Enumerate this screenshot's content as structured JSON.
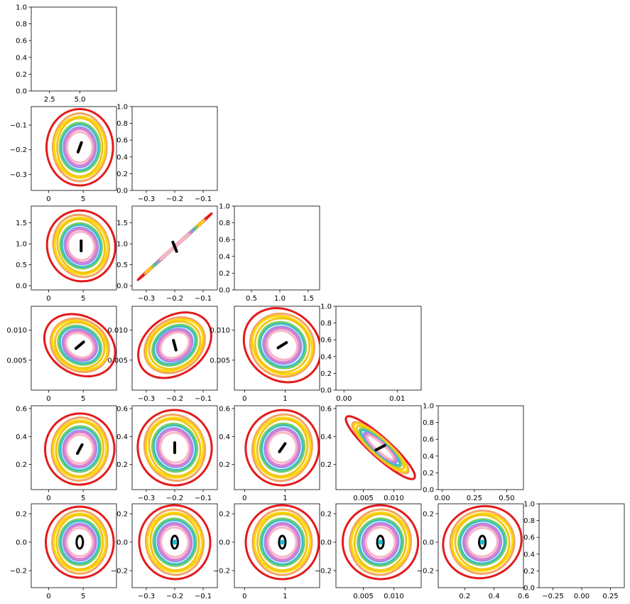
{
  "chart_data": {
    "type": "corner-plot",
    "description_free": true,
    "ellipse_colors": [
      "#e41a1c",
      "#f4a460",
      "#ffd700",
      "#f0c419",
      "#7dd05a",
      "#3cc0c0",
      "#9a8fe8",
      "#e07fd0",
      "#f7b6c8"
    ],
    "ellipse_scales": [
      1.0,
      0.86,
      0.8,
      0.74,
      0.64,
      0.58,
      0.52,
      0.46,
      0.4
    ],
    "panels": [
      {
        "id": "p0-0",
        "row": 0,
        "col": 0,
        "xlim": [
          1.0,
          8.0
        ],
        "ylim": [
          0.0,
          1.0
        ],
        "xticks": [
          {
            "v": 2.5,
            "l": "2.5"
          },
          {
            "v": 5.0,
            "l": "5.0"
          }
        ],
        "yticks": [
          {
            "v": 0.0,
            "l": "0.0"
          },
          {
            "v": 0.2,
            "l": "0.2"
          },
          {
            "v": 0.4,
            "l": "0.4"
          },
          {
            "v": 0.6,
            "l": "0.6"
          },
          {
            "v": 0.8,
            "l": "0.8"
          },
          {
            "v": 1.0,
            "l": "1.0"
          }
        ],
        "empty": true
      },
      {
        "id": "p1-0",
        "row": 1,
        "col": 0,
        "xlim": [
          -2.5,
          9.8
        ],
        "ylim": [
          -0.365,
          -0.025
        ],
        "xticks": [
          {
            "v": 0,
            "l": "0"
          },
          {
            "v": 5,
            "l": "5"
          }
        ],
        "yticks": [
          {
            "v": -0.1,
            "l": "−0.1"
          },
          {
            "v": -0.2,
            "l": "−0.2"
          },
          {
            "v": -0.3,
            "l": "−0.3"
          }
        ],
        "center": [
          4.5,
          -0.19
        ],
        "rx": 4.8,
        "ry": 0.155,
        "rot": 0
      },
      {
        "id": "p1-1",
        "row": 1,
        "col": 1,
        "xlim": [
          -0.35,
          -0.05
        ],
        "ylim": [
          0.0,
          1.0
        ],
        "xticks": [
          {
            "v": -0.3,
            "l": "−0.3"
          },
          {
            "v": -0.2,
            "l": "−0.2"
          },
          {
            "v": -0.1,
            "l": "−0.1"
          }
        ],
        "yticks": [
          {
            "v": 0.0,
            "l": "0.0"
          },
          {
            "v": 0.2,
            "l": "0.2"
          },
          {
            "v": 0.4,
            "l": "0.4"
          },
          {
            "v": 0.6,
            "l": "0.6"
          },
          {
            "v": 0.8,
            "l": "0.8"
          },
          {
            "v": 1.0,
            "l": "1.0"
          }
        ],
        "empty": true
      },
      {
        "id": "p2-0",
        "row": 2,
        "col": 0,
        "xlim": [
          -2.5,
          9.8
        ],
        "ylim": [
          -0.1,
          1.9
        ],
        "xticks": [
          {
            "v": 0,
            "l": "0"
          },
          {
            "v": 5,
            "l": "5"
          }
        ],
        "yticks": [
          {
            "v": 0.0,
            "l": "0.0"
          },
          {
            "v": 0.5,
            "l": "0.5"
          },
          {
            "v": 1.0,
            "l": "1.0"
          },
          {
            "v": 1.5,
            "l": "1.5"
          }
        ],
        "center": [
          4.7,
          0.95
        ],
        "rx": 4.9,
        "ry": 0.85,
        "rot": -20
      },
      {
        "id": "p2-1",
        "row": 2,
        "col": 1,
        "xlim": [
          -0.35,
          -0.05
        ],
        "ylim": [
          -0.1,
          1.9
        ],
        "xticks": [
          {
            "v": -0.3,
            "l": "−0.3"
          },
          {
            "v": -0.2,
            "l": "−0.2"
          },
          {
            "v": -0.1,
            "l": "−0.1"
          }
        ],
        "yticks": [
          {
            "v": 0.0,
            "l": "0.0"
          },
          {
            "v": 0.5,
            "l": "0.5"
          },
          {
            "v": 1.0,
            "l": "1.0"
          },
          {
            "v": 1.5,
            "l": "1.5"
          }
        ],
        "center": [
          -0.2,
          0.93
        ],
        "rx": 0.175,
        "ry": 0.02,
        "rot": -42,
        "thin": true
      },
      {
        "id": "p2-2",
        "row": 2,
        "col": 2,
        "xlim": [
          0.2,
          1.7
        ],
        "ylim": [
          0.0,
          1.0
        ],
        "xticks": [
          {
            "v": 0.5,
            "l": "0.5"
          },
          {
            "v": 1.0,
            "l": "1.0"
          },
          {
            "v": 1.5,
            "l": "1.5"
          }
        ],
        "yticks": [
          {
            "v": 0.0,
            "l": "0.0"
          },
          {
            "v": 0.2,
            "l": "0.2"
          },
          {
            "v": 0.4,
            "l": "0.4"
          },
          {
            "v": 0.6,
            "l": "0.6"
          },
          {
            "v": 0.8,
            "l": "0.8"
          },
          {
            "v": 1.0,
            "l": "1.0"
          }
        ],
        "empty": true
      },
      {
        "id": "p3-0",
        "row": 3,
        "col": 0,
        "xlim": [
          -2.5,
          9.8
        ],
        "ylim": [
          0.0,
          0.014
        ],
        "xticks": [
          {
            "v": 0,
            "l": "0"
          },
          {
            "v": 5,
            "l": "5"
          }
        ],
        "yticks": [
          {
            "v": 0.005,
            "l": "0.005"
          },
          {
            "v": 0.01,
            "l": "0.010"
          }
        ],
        "center": [
          4.5,
          0.0075
        ],
        "rx": 5.4,
        "ry": 0.0048,
        "rot": 30
      },
      {
        "id": "p3-1",
        "row": 3,
        "col": 1,
        "xlim": [
          -0.35,
          -0.05
        ],
        "ylim": [
          0.0,
          0.014
        ],
        "xticks": [
          {
            "v": -0.3,
            "l": "−0.3"
          },
          {
            "v": -0.2,
            "l": "−0.2"
          },
          {
            "v": -0.1,
            "l": "−0.1"
          }
        ],
        "yticks": [
          {
            "v": 0.005,
            "l": "0.005"
          },
          {
            "v": 0.01,
            "l": "0.010"
          }
        ],
        "center": [
          -0.2,
          0.0075
        ],
        "rx": 0.14,
        "ry": 0.0048,
        "rot": -35
      },
      {
        "id": "p3-2",
        "row": 3,
        "col": 2,
        "xlim": [
          -0.25,
          1.85
        ],
        "ylim": [
          0.0,
          0.014
        ],
        "xticks": [
          {
            "v": 0,
            "l": "0"
          },
          {
            "v": 1,
            "l": "1"
          }
        ],
        "yticks": [
          {
            "v": 0.005,
            "l": "0.005"
          },
          {
            "v": 0.01,
            "l": "0.010"
          }
        ],
        "center": [
          0.93,
          0.0075
        ],
        "rx": 1.0,
        "ry": 0.0058,
        "rot": 38
      },
      {
        "id": "p3-3",
        "row": 3,
        "col": 3,
        "xlim": [
          -0.0015,
          0.0145
        ],
        "ylim": [
          0.0,
          1.0
        ],
        "xticks": [
          {
            "v": 0.0,
            "l": "0.00"
          },
          {
            "v": 0.01,
            "l": "0.01"
          }
        ],
        "yticks": [
          {
            "v": 0.0,
            "l": "0.0"
          },
          {
            "v": 0.2,
            "l": "0.2"
          },
          {
            "v": 0.4,
            "l": "0.4"
          },
          {
            "v": 0.6,
            "l": "0.6"
          },
          {
            "v": 0.8,
            "l": "0.8"
          },
          {
            "v": 1.0,
            "l": "1.0"
          }
        ],
        "empty": true
      },
      {
        "id": "p4-0",
        "row": 4,
        "col": 0,
        "xlim": [
          -2.5,
          9.8
        ],
        "ylim": [
          0.02,
          0.62
        ],
        "xticks": [
          {
            "v": 0,
            "l": "0"
          },
          {
            "v": 5,
            "l": "5"
          }
        ],
        "yticks": [
          {
            "v": 0.2,
            "l": "0.2"
          },
          {
            "v": 0.4,
            "l": "0.4"
          },
          {
            "v": 0.6,
            "l": "0.6"
          }
        ],
        "center": [
          4.5,
          0.31
        ],
        "rx": 5.0,
        "ry": 0.255,
        "rot": 8
      },
      {
        "id": "p4-1",
        "row": 4,
        "col": 1,
        "xlim": [
          -0.35,
          -0.05
        ],
        "ylim": [
          0.02,
          0.62
        ],
        "xticks": [
          {
            "v": -0.3,
            "l": "−0.3"
          },
          {
            "v": -0.2,
            "l": "−0.2"
          },
          {
            "v": -0.1,
            "l": "−0.1"
          }
        ],
        "yticks": [
          {
            "v": 0.2,
            "l": "0.2"
          },
          {
            "v": 0.4,
            "l": "0.4"
          },
          {
            "v": 0.6,
            "l": "0.6"
          }
        ],
        "center": [
          -0.2,
          0.32
        ],
        "rx": 0.13,
        "ry": 0.27,
        "rot": -20
      },
      {
        "id": "p4-2",
        "row": 4,
        "col": 2,
        "xlim": [
          -0.25,
          1.85
        ],
        "ylim": [
          0.02,
          0.62
        ],
        "xticks": [
          {
            "v": 0,
            "l": "0"
          },
          {
            "v": 1,
            "l": "1"
          }
        ],
        "yticks": [
          {
            "v": 0.2,
            "l": "0.2"
          },
          {
            "v": 0.4,
            "l": "0.4"
          },
          {
            "v": 0.6,
            "l": "0.6"
          }
        ],
        "center": [
          0.93,
          0.32
        ],
        "rx": 0.9,
        "ry": 0.27,
        "rot": 15
      },
      {
        "id": "p4-3",
        "row": 4,
        "col": 3,
        "xlim": [
          0.0005,
          0.0145
        ],
        "ylim": [
          0.02,
          0.62
        ],
        "xticks": [
          {
            "v": 0.005,
            "l": "0.005"
          },
          {
            "v": 0.01,
            "l": "0.010"
          }
        ],
        "yticks": [
          {
            "v": 0.2,
            "l": "0.2"
          },
          {
            "v": 0.4,
            "l": "0.4"
          },
          {
            "v": 0.6,
            "l": "0.6"
          }
        ],
        "center": [
          0.0078,
          0.32
        ],
        "rx": 0.0075,
        "ry": 0.07,
        "rot": 42,
        "thin": true
      },
      {
        "id": "p4-4",
        "row": 4,
        "col": 4,
        "xlim": [
          -0.03,
          0.63
        ],
        "ylim": [
          0.0,
          1.0
        ],
        "xticks": [
          {
            "v": 0.0,
            "l": "0.00"
          },
          {
            "v": 0.25,
            "l": "0.25"
          },
          {
            "v": 0.5,
            "l": "0.50"
          }
        ],
        "yticks": [
          {
            "v": 0.0,
            "l": "0.0"
          },
          {
            "v": 0.2,
            "l": "0.2"
          },
          {
            "v": 0.4,
            "l": "0.4"
          },
          {
            "v": 0.6,
            "l": "0.6"
          },
          {
            "v": 0.8,
            "l": "0.8"
          },
          {
            "v": 1.0,
            "l": "1.0"
          }
        ],
        "empty": true
      },
      {
        "id": "p5-0",
        "row": 5,
        "col": 0,
        "xlim": [
          -2.5,
          9.8
        ],
        "ylim": [
          -0.32,
          0.27
        ],
        "xticks": [
          {
            "v": 0,
            "l": "0"
          },
          {
            "v": 5,
            "l": "5"
          }
        ],
        "yticks": [
          {
            "v": 0.2,
            "l": "0.2"
          },
          {
            "v": 0.0,
            "l": "0.0"
          },
          {
            "v": -0.2,
            "l": "−0.2"
          }
        ],
        "center": [
          4.5,
          0.0
        ],
        "rx": 4.9,
        "ry": 0.25,
        "rot": 0,
        "inner_oval": true
      },
      {
        "id": "p5-1",
        "row": 5,
        "col": 1,
        "xlim": [
          -0.35,
          -0.05
        ],
        "ylim": [
          -0.32,
          0.27
        ],
        "xticks": [
          {
            "v": -0.3,
            "l": "−0.3"
          },
          {
            "v": -0.2,
            "l": "−0.2"
          },
          {
            "v": -0.1,
            "l": "−0.1"
          }
        ],
        "yticks": [
          {
            "v": 0.2,
            "l": "0.2"
          },
          {
            "v": 0.0,
            "l": "0.0"
          },
          {
            "v": -0.2,
            "l": "−0.2"
          }
        ],
        "center": [
          -0.2,
          0.0
        ],
        "rx": 0.125,
        "ry": 0.26,
        "rot": -8,
        "inner_oval": true
      },
      {
        "id": "p5-2",
        "row": 5,
        "col": 2,
        "xlim": [
          -0.25,
          1.85
        ],
        "ylim": [
          -0.32,
          0.27
        ],
        "xticks": [
          {
            "v": 0,
            "l": "0"
          },
          {
            "v": 1,
            "l": "1"
          }
        ],
        "yticks": [
          {
            "v": 0.2,
            "l": "0.2"
          },
          {
            "v": 0.0,
            "l": "0.0"
          },
          {
            "v": -0.2,
            "l": "−0.2"
          }
        ],
        "center": [
          0.93,
          0.0
        ],
        "rx": 0.9,
        "ry": 0.26,
        "rot": 0,
        "inner_oval": true
      },
      {
        "id": "p5-3",
        "row": 5,
        "col": 3,
        "xlim": [
          0.0005,
          0.0145
        ],
        "ylim": [
          -0.32,
          0.27
        ],
        "xticks": [
          {
            "v": 0.005,
            "l": "0.005"
          },
          {
            "v": 0.01,
            "l": "0.010"
          }
        ],
        "yticks": [
          {
            "v": 0.2,
            "l": "0.2"
          },
          {
            "v": 0.0,
            "l": "0.0"
          },
          {
            "v": -0.2,
            "l": "−0.2"
          }
        ],
        "center": [
          0.0078,
          0.0
        ],
        "rx": 0.0062,
        "ry": 0.26,
        "rot": 10,
        "inner_oval": true
      },
      {
        "id": "p5-4",
        "row": 5,
        "col": 4,
        "xlim": [
          0.02,
          0.6
        ],
        "ylim": [
          -0.32,
          0.27
        ],
        "xticks": [
          {
            "v": 0.2,
            "l": "0.2"
          },
          {
            "v": 0.4,
            "l": "0.4"
          },
          {
            "v": 0.6,
            "l": "0.6"
          }
        ],
        "yticks": [
          {
            "v": 0.2,
            "l": "0.2"
          },
          {
            "v": 0.0,
            "l": "0.0"
          },
          {
            "v": -0.2,
            "l": "−0.2"
          }
        ],
        "center": [
          0.32,
          0.0
        ],
        "rx": 0.27,
        "ry": 0.25,
        "rot": -20,
        "inner_oval": true
      },
      {
        "id": "p5-5",
        "row": 5,
        "col": 5,
        "xlim": [
          -0.37,
          0.37
        ],
        "ylim": [
          0.0,
          1.0
        ],
        "xticks": [
          {
            "v": -0.25,
            "l": "−0.25"
          },
          {
            "v": 0.0,
            "l": "0.00"
          },
          {
            "v": 0.25,
            "l": "0.25"
          }
        ],
        "yticks": [
          {
            "v": 0.0,
            "l": "0.0"
          },
          {
            "v": 0.2,
            "l": "0.2"
          },
          {
            "v": 0.4,
            "l": "0.4"
          },
          {
            "v": 0.6,
            "l": "0.6"
          },
          {
            "v": 0.8,
            "l": "0.8"
          },
          {
            "v": 1.0,
            "l": "1.0"
          }
        ],
        "empty": true
      }
    ]
  }
}
